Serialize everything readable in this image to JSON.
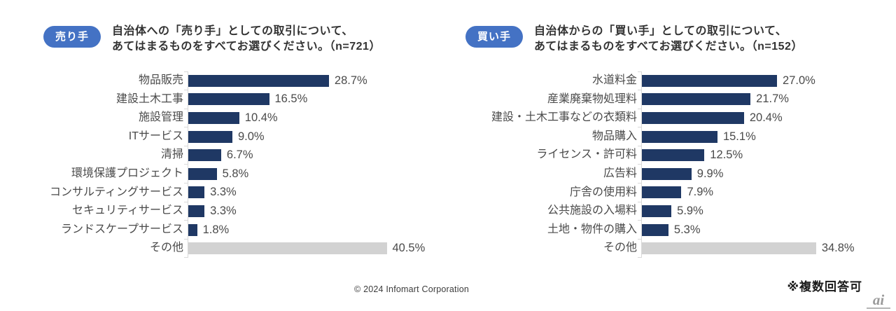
{
  "colors": {
    "bar": "#1F3864",
    "other_bar": "#D2D2D2",
    "badge": "#4472C4",
    "axis": "#D9D9D9"
  },
  "chart_data": [
    {
      "type": "bar",
      "orientation": "horizontal",
      "badge": "売り手",
      "title_lines": [
        "自治体への「売り手」としての取引について、",
        "あてはまるものをすべてお選びください。（n=721）"
      ],
      "title": "自治体への「売り手」としての取引について、あてはまるものをすべてお選びください。（n=721）",
      "n": 721,
      "categories": [
        "物品販売",
        "建設土木工事",
        "施設管理",
        "ITサービス",
        "清掃",
        "環境保護プロジェクト",
        "コンサルティングサービス",
        "セキュリティサービス",
        "ランドスケープサービス",
        "その他"
      ],
      "values": [
        28.7,
        16.5,
        10.4,
        9.0,
        6.7,
        5.8,
        3.3,
        3.3,
        1.8,
        40.5
      ],
      "value_labels": [
        "28.7%",
        "16.5%",
        "10.4%",
        "9.0%",
        "6.7%",
        "5.8%",
        "3.3%",
        "3.3%",
        "1.8%",
        "40.5%"
      ],
      "xlim": [
        0,
        45
      ],
      "grid": false,
      "legend": false,
      "other_category_gray": "その他"
    },
    {
      "type": "bar",
      "orientation": "horizontal",
      "badge": "買い手",
      "title_lines": [
        "自治体からの「買い手」としての取引について、",
        "あてはまるものをすべてお選びください。（n=152）"
      ],
      "title": "自治体からの「買い手」としての取引について、あてはまるものをすべてお選びください。（n=152）",
      "n": 152,
      "categories": [
        "水道料金",
        "産業廃棄物処理料",
        "建設・土木工事などの衣類料",
        "物品購入",
        "ライセンス・許可料",
        "広告料",
        "庁舎の使用料",
        "公共施設の入場料",
        "土地・物件の購入",
        "その他"
      ],
      "values": [
        27.0,
        21.7,
        20.4,
        15.1,
        12.5,
        9.9,
        7.9,
        5.9,
        5.3,
        34.8
      ],
      "value_labels": [
        "27.0%",
        "21.7%",
        "20.4%",
        "15.1%",
        "12.5%",
        "9.9%",
        "7.9%",
        "5.9%",
        "5.3%",
        "34.8%"
      ],
      "xlim": [
        0,
        40
      ],
      "grid": false,
      "legend": false,
      "other_category_gray": "その他"
    }
  ],
  "footer": {
    "copyright": "© 2024 Infomart Corporation",
    "note": "※複数回答可",
    "watermark": "ai"
  }
}
